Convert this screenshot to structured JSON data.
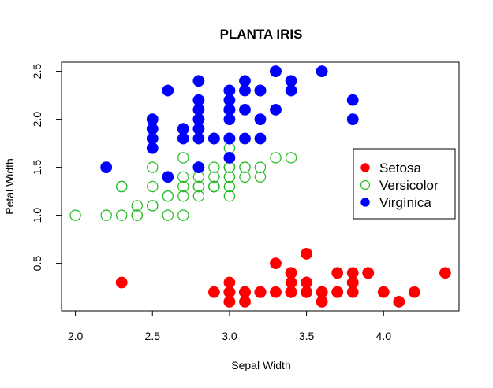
{
  "chart_data": {
    "type": "scatter",
    "title": "PLANTA IRIS",
    "xlabel": "Sepal Width",
    "ylabel": "Petal Width",
    "xlim": [
      1.91,
      4.49
    ],
    "ylim": [
      0.005,
      2.595
    ],
    "xticks": [
      "2.0",
      "2.5",
      "3.0",
      "3.5",
      "4.0"
    ],
    "yticks": [
      "0.5",
      "1.0",
      "1.5",
      "2.0",
      "2.5"
    ],
    "legend_position": "right",
    "series": [
      {
        "name": "Setosa",
        "color": "#FF0000",
        "marker": "filled-circle",
        "points": [
          [
            3.5,
            0.2
          ],
          [
            3.0,
            0.2
          ],
          [
            3.2,
            0.2
          ],
          [
            3.1,
            0.2
          ],
          [
            3.6,
            0.2
          ],
          [
            3.9,
            0.4
          ],
          [
            3.4,
            0.3
          ],
          [
            3.4,
            0.2
          ],
          [
            2.9,
            0.2
          ],
          [
            3.1,
            0.1
          ],
          [
            3.7,
            0.2
          ],
          [
            3.4,
            0.2
          ],
          [
            3.0,
            0.1
          ],
          [
            3.0,
            0.1
          ],
          [
            4.0,
            0.2
          ],
          [
            4.4,
            0.4
          ],
          [
            3.9,
            0.4
          ],
          [
            3.5,
            0.3
          ],
          [
            3.8,
            0.3
          ],
          [
            3.8,
            0.3
          ],
          [
            3.4,
            0.2
          ],
          [
            3.7,
            0.4
          ],
          [
            3.6,
            0.2
          ],
          [
            3.3,
            0.5
          ],
          [
            3.4,
            0.2
          ],
          [
            3.0,
            0.2
          ],
          [
            3.4,
            0.4
          ],
          [
            3.5,
            0.2
          ],
          [
            3.4,
            0.2
          ],
          [
            3.2,
            0.2
          ],
          [
            3.1,
            0.2
          ],
          [
            3.4,
            0.4
          ],
          [
            4.1,
            0.1
          ],
          [
            4.2,
            0.2
          ],
          [
            3.1,
            0.2
          ],
          [
            3.2,
            0.2
          ],
          [
            3.5,
            0.2
          ],
          [
            3.6,
            0.1
          ],
          [
            3.0,
            0.2
          ],
          [
            3.4,
            0.2
          ],
          [
            3.5,
            0.3
          ],
          [
            2.3,
            0.3
          ],
          [
            3.2,
            0.2
          ],
          [
            3.5,
            0.6
          ],
          [
            3.8,
            0.4
          ],
          [
            3.0,
            0.3
          ],
          [
            3.8,
            0.2
          ],
          [
            3.2,
            0.2
          ],
          [
            3.7,
            0.2
          ],
          [
            3.3,
            0.2
          ]
        ]
      },
      {
        "name": "Versicolor",
        "color": "#22BB22",
        "marker": "open-circle",
        "points": [
          [
            3.2,
            1.4
          ],
          [
            3.2,
            1.5
          ],
          [
            3.1,
            1.5
          ],
          [
            2.3,
            1.3
          ],
          [
            2.8,
            1.5
          ],
          [
            2.8,
            1.3
          ],
          [
            3.3,
            1.6
          ],
          [
            2.4,
            1.0
          ],
          [
            2.9,
            1.3
          ],
          [
            2.7,
            1.4
          ],
          [
            2.0,
            1.0
          ],
          [
            3.0,
            1.5
          ],
          [
            2.2,
            1.0
          ],
          [
            2.9,
            1.4
          ],
          [
            2.9,
            1.3
          ],
          [
            3.1,
            1.4
          ],
          [
            3.0,
            1.5
          ],
          [
            2.7,
            1.0
          ],
          [
            2.2,
            1.5
          ],
          [
            2.5,
            1.1
          ],
          [
            3.2,
            1.8
          ],
          [
            2.8,
            1.3
          ],
          [
            2.5,
            1.5
          ],
          [
            2.8,
            1.2
          ],
          [
            2.9,
            1.3
          ],
          [
            3.0,
            1.4
          ],
          [
            2.8,
            1.4
          ],
          [
            3.0,
            1.7
          ],
          [
            2.9,
            1.5
          ],
          [
            2.6,
            1.0
          ],
          [
            2.4,
            1.1
          ],
          [
            2.4,
            1.0
          ],
          [
            2.7,
            1.2
          ],
          [
            2.7,
            1.6
          ],
          [
            3.0,
            1.5
          ],
          [
            3.4,
            1.6
          ],
          [
            3.1,
            1.5
          ],
          [
            2.3,
            1.3
          ],
          [
            3.0,
            1.3
          ],
          [
            2.5,
            1.3
          ],
          [
            2.6,
            1.2
          ],
          [
            3.0,
            1.4
          ],
          [
            2.6,
            1.2
          ],
          [
            2.3,
            1.0
          ],
          [
            2.7,
            1.3
          ],
          [
            3.0,
            1.2
          ],
          [
            2.9,
            1.3
          ],
          [
            2.9,
            1.3
          ],
          [
            2.5,
            1.1
          ],
          [
            2.8,
            1.3
          ]
        ]
      },
      {
        "name": "Virgínica",
        "color": "#0000FF",
        "marker": "filled-circle",
        "points": [
          [
            3.3,
            2.5
          ],
          [
            2.7,
            1.9
          ],
          [
            3.0,
            2.1
          ],
          [
            2.9,
            1.8
          ],
          [
            3.0,
            2.2
          ],
          [
            3.0,
            2.1
          ],
          [
            2.5,
            1.7
          ],
          [
            2.9,
            1.8
          ],
          [
            2.5,
            1.8
          ],
          [
            3.6,
            2.5
          ],
          [
            3.2,
            2.0
          ],
          [
            2.7,
            1.9
          ],
          [
            3.0,
            2.1
          ],
          [
            2.5,
            2.0
          ],
          [
            2.8,
            2.4
          ],
          [
            3.2,
            2.3
          ],
          [
            3.0,
            1.8
          ],
          [
            3.8,
            2.2
          ],
          [
            2.6,
            2.3
          ],
          [
            2.2,
            1.5
          ],
          [
            3.2,
            2.3
          ],
          [
            2.8,
            2.0
          ],
          [
            2.8,
            2.0
          ],
          [
            2.7,
            1.8
          ],
          [
            3.3,
            2.1
          ],
          [
            3.2,
            1.8
          ],
          [
            2.8,
            1.8
          ],
          [
            3.0,
            1.8
          ],
          [
            2.8,
            2.1
          ],
          [
            3.0,
            1.6
          ],
          [
            2.8,
            1.9
          ],
          [
            3.8,
            2.0
          ],
          [
            2.8,
            2.2
          ],
          [
            2.8,
            1.5
          ],
          [
            2.6,
            1.4
          ],
          [
            3.0,
            2.3
          ],
          [
            3.4,
            2.4
          ],
          [
            3.1,
            1.8
          ],
          [
            3.0,
            1.8
          ],
          [
            3.1,
            2.1
          ],
          [
            3.1,
            2.4
          ],
          [
            3.1,
            2.3
          ],
          [
            2.7,
            1.9
          ],
          [
            3.2,
            2.3
          ],
          [
            3.3,
            2.5
          ],
          [
            3.0,
            2.3
          ],
          [
            2.5,
            1.9
          ],
          [
            3.0,
            2.0
          ],
          [
            3.4,
            2.3
          ],
          [
            3.0,
            1.8
          ]
        ]
      }
    ]
  }
}
